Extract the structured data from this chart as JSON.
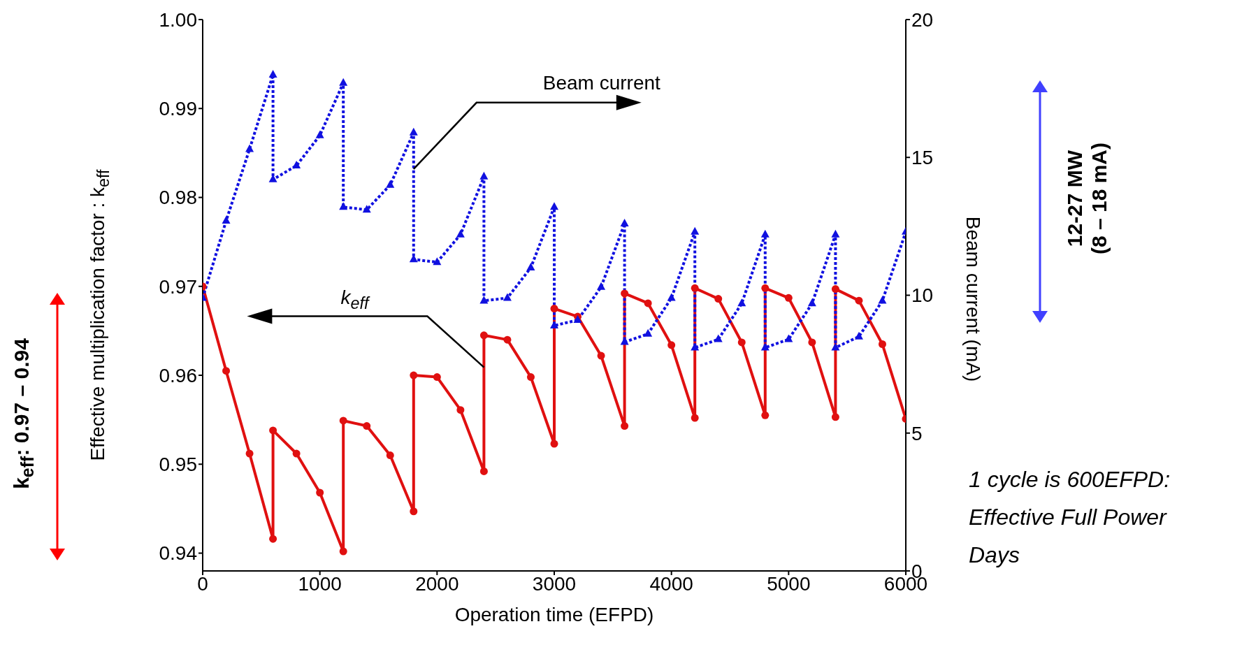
{
  "chart_data": {
    "type": "line",
    "xlabel": "Operation time (EFPD)",
    "ylabel": "Effective multiplication factor : k$_{eff}$",
    "y2label": "Beam current (mA)",
    "xlim": [
      0,
      6000
    ],
    "xticks": [
      0,
      1000,
      2000,
      3000,
      4000,
      5000,
      6000
    ],
    "ylim": [
      0.938,
      1.0
    ],
    "yticks": [
      0.94,
      0.95,
      0.96,
      0.97,
      0.98,
      0.99,
      {
        "value": 1.0,
        "label": "1.00"
      }
    ],
    "y2lim": [
      0,
      20
    ],
    "y2ticks": [
      0,
      5,
      10,
      15,
      20
    ],
    "annotations": [
      {
        "text": "Beam current",
        "x": 1800,
        "y": 0.9832
      },
      {
        "text": "k$_{eff}$",
        "x": 2400,
        "y": 0.9609
      },
      "k$_{eff}$: 0.97 – 0.94",
      "12-27 MW\n(8 – 18 mA)",
      "1 cycle is 600EFPD: Effective Full Power Days"
    ],
    "series": [
      {
        "color": "#e01010",
        "marker": "circle",
        "line_style": "solid",
        "x": [
          0,
          200,
          400,
          600,
          600,
          800,
          1000,
          1200,
          1200,
          1400,
          1600,
          1800,
          1800,
          2000,
          2200,
          2400,
          2400,
          2600,
          2800,
          3000,
          3000,
          3200,
          3400,
          3600,
          3600,
          3800,
          4000,
          4200,
          4200,
          4400,
          4600,
          4800,
          4800,
          5000,
          5200,
          5400,
          5400,
          5600,
          5800,
          6000
        ],
        "values": [
          0.97,
          0.9605,
          0.9512,
          0.9416,
          0.9538,
          0.9512,
          0.9468,
          0.9402,
          0.9549,
          0.9543,
          0.951,
          0.9447,
          0.96,
          0.9598,
          0.9561,
          0.9492,
          0.9645,
          0.964,
          0.9598,
          0.9523,
          0.9675,
          0.9666,
          0.9622,
          0.9543,
          0.9692,
          0.9681,
          0.9634,
          0.9552,
          0.9698,
          0.9686,
          0.9637,
          0.9555,
          0.9698,
          0.9687,
          0.9637,
          0.9553,
          0.9697,
          0.9684,
          0.9635,
          0.9551
        ]
      },
      {
        "color": "#1010e0",
        "marker": "triangle",
        "line_style": "dotted",
        "axis": "y2",
        "x": [
          0,
          200,
          400,
          600,
          600,
          800,
          1000,
          1200,
          1200,
          1400,
          1600,
          1800,
          1800,
          2000,
          2200,
          2400,
          2400,
          2600,
          2800,
          3000,
          3000,
          3200,
          3400,
          3600,
          3600,
          3800,
          4000,
          4200,
          4200,
          4400,
          4600,
          4800,
          4800,
          5000,
          5200,
          5400,
          5400,
          5600,
          5800,
          6000
        ],
        "values": [
          9.9,
          12.7,
          15.3,
          18.0,
          14.2,
          14.7,
          15.8,
          17.7,
          13.2,
          13.1,
          14.0,
          15.9,
          11.3,
          11.2,
          12.2,
          14.3,
          9.8,
          9.9,
          11.0,
          13.2,
          8.9,
          9.1,
          10.3,
          12.6,
          8.3,
          8.6,
          9.9,
          12.3,
          8.1,
          8.4,
          9.7,
          12.2,
          8.1,
          8.4,
          9.7,
          12.2,
          8.1,
          8.5,
          9.8,
          12.3
        ]
      }
    ]
  }
}
